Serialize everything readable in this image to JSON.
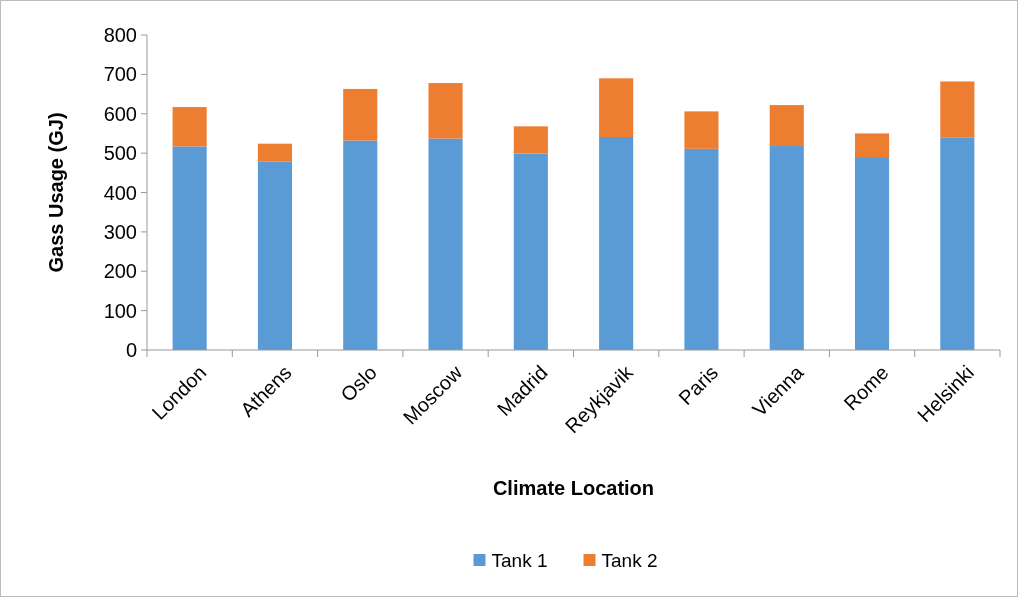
{
  "chart_data": {
    "type": "bar",
    "stacked": true,
    "xlabel": "Climate Location",
    "ylabel": "Gass Usage (GJ)",
    "categories": [
      "London",
      "Athens",
      "Oslo",
      "Moscow",
      "Madrid",
      "Reykjavik",
      "Paris",
      "Vienna",
      "Rome",
      "Helsinki"
    ],
    "series": [
      {
        "name": "Tank 1",
        "color": "#5b9bd5",
        "values": [
          517,
          479,
          532,
          537,
          499,
          541,
          511,
          518,
          490,
          539
        ]
      },
      {
        "name": "Tank 2",
        "color": "#ed7d31",
        "values": [
          100,
          45,
          131,
          141,
          69,
          149,
          95,
          104,
          60,
          143
        ]
      }
    ],
    "ylim": [
      0,
      800
    ],
    "yticks": [
      0,
      100,
      200,
      300,
      400,
      500,
      600,
      700,
      800
    ],
    "grid": false,
    "legend": "bottom"
  }
}
